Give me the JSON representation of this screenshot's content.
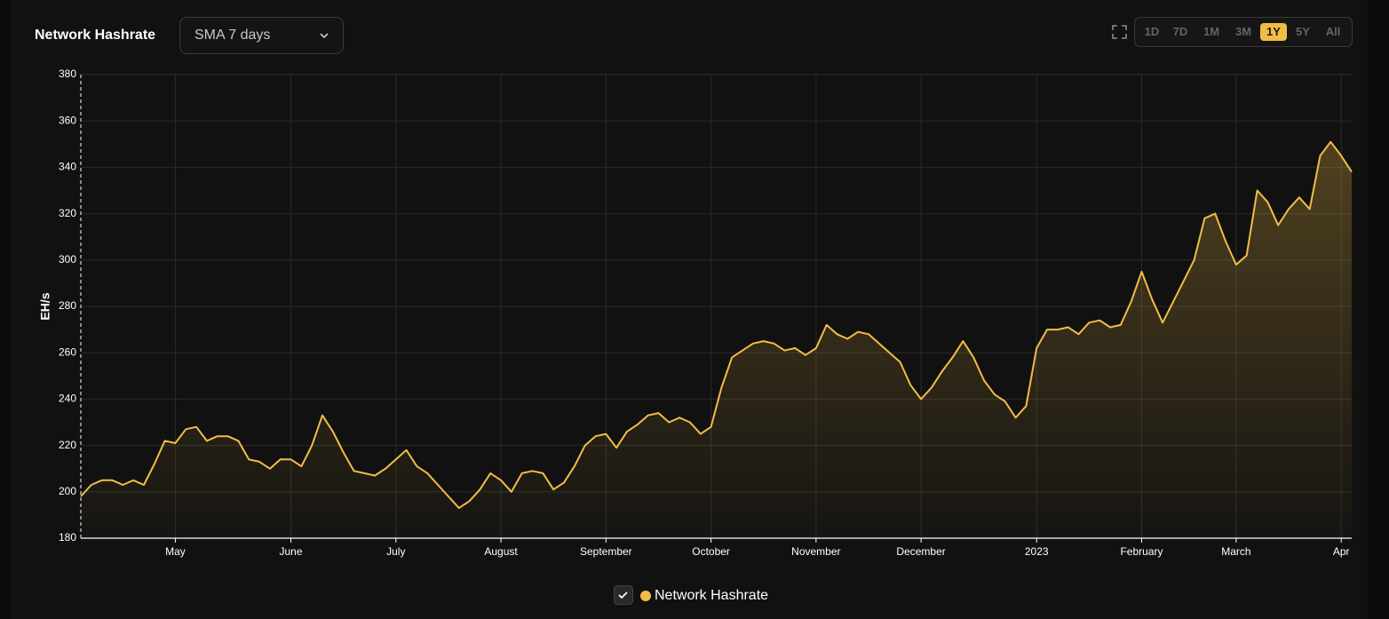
{
  "header": {
    "title": "Network Hashrate",
    "dropdown": "SMA 7 days",
    "ranges": [
      "1D",
      "7D",
      "1M",
      "3M",
      "1Y",
      "5Y",
      "All"
    ],
    "active_range": "1Y"
  },
  "chart_data": {
    "type": "line",
    "y_label": "EH/s",
    "categories": [
      null,
      null,
      null,
      null,
      null,
      null,
      null,
      null,
      null,
      "May",
      null,
      null,
      null,
      null,
      null,
      null,
      null,
      null,
      null,
      null,
      "June",
      null,
      null,
      null,
      null,
      null,
      null,
      null,
      null,
      null,
      "July",
      null,
      null,
      null,
      null,
      null,
      null,
      null,
      null,
      null,
      "August",
      null,
      null,
      null,
      null,
      null,
      null,
      null,
      null,
      null,
      "September",
      null,
      null,
      null,
      null,
      null,
      null,
      null,
      null,
      null,
      "October",
      null,
      null,
      null,
      null,
      null,
      null,
      null,
      null,
      null,
      "November",
      null,
      null,
      null,
      null,
      null,
      null,
      null,
      null,
      null,
      "December",
      null,
      null,
      null,
      null,
      null,
      null,
      null,
      null,
      null,
      null,
      "2023",
      null,
      null,
      null,
      null,
      null,
      null,
      null,
      null,
      null,
      "February",
      null,
      null,
      null,
      null,
      null,
      null,
      null,
      null,
      "March",
      null,
      null,
      null,
      null,
      null,
      null,
      null,
      null,
      null,
      "Apr",
      null
    ],
    "series": [
      {
        "name": "Network Hashrate",
        "color": "#f2bd45",
        "values": [
          198,
          203,
          205,
          205,
          203,
          205,
          203,
          212,
          222,
          221,
          227,
          228,
          222,
          224,
          224,
          222,
          214,
          213,
          210,
          214,
          214,
          211,
          220,
          233,
          226,
          217,
          209,
          208,
          207,
          210,
          214,
          218,
          211,
          208,
          203,
          198,
          193,
          196,
          201,
          208,
          205,
          200,
          208,
          209,
          208,
          201,
          204,
          211,
          220,
          224,
          225,
          219,
          226,
          229,
          233,
          234,
          230,
          232,
          230,
          225,
          228,
          245,
          258,
          261,
          264,
          265,
          264,
          261,
          262,
          259,
          262,
          272,
          268,
          266,
          269,
          268,
          264,
          260,
          256,
          246,
          240,
          245,
          252,
          258,
          265,
          258,
          248,
          242,
          239,
          232,
          237,
          262,
          270,
          270,
          271,
          268,
          273,
          274,
          271,
          272,
          282,
          295,
          283,
          273,
          282,
          291,
          300,
          318,
          320,
          308,
          298,
          302,
          330,
          325,
          315,
          322,
          327,
          322,
          345,
          351,
          345,
          338
        ]
      }
    ],
    "ylim": [
      180,
      380
    ],
    "yticks": [
      180,
      200,
      220,
      240,
      260,
      280,
      300,
      320,
      340,
      360,
      380
    ],
    "grid": true,
    "area": true
  }
}
